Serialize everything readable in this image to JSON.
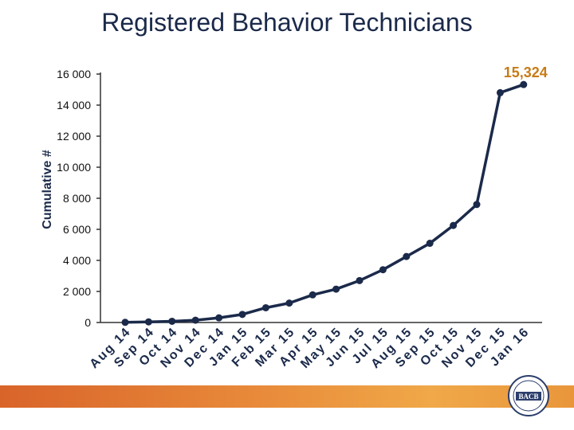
{
  "chart_data": {
    "type": "line",
    "title": "Registered Behavior Technicians",
    "ylabel": "Cumulative #",
    "xlabel": "",
    "ylim": [
      0,
      16000
    ],
    "y_ticks": [
      0,
      2000,
      4000,
      6000,
      8000,
      10000,
      12000,
      14000,
      16000
    ],
    "y_tick_labels": [
      "0",
      "2 000",
      "4 000",
      "6 000",
      "8 000",
      "10 000",
      "12 000",
      "14 000",
      "16 000"
    ],
    "categories": [
      "Aug 14",
      "Sep 14",
      "Oct 14",
      "Nov 14",
      "Dec 14",
      "Jan 15",
      "Feb 15",
      "Mar 15",
      "Apr 15",
      "May 15",
      "Jun 15",
      "Jul 15",
      "Aug 15",
      "Sep 15",
      "Oct 15",
      "Nov 15",
      "Dec 15",
      "Jan 16"
    ],
    "series": [
      {
        "name": "Cumulative #",
        "values": [
          10,
          40,
          80,
          150,
          300,
          520,
          950,
          1250,
          1780,
          2150,
          2700,
          3400,
          4250,
          5100,
          6250,
          7600,
          14800,
          15324
        ],
        "color": "#1b2a4a"
      }
    ],
    "annotation": {
      "text": "15,324",
      "color": "#c77b17"
    },
    "grid": false,
    "legend": "none"
  },
  "logo": {
    "text": "BACB"
  },
  "colors": {
    "line": "#1b2a4a",
    "accent": "#c77b17"
  }
}
